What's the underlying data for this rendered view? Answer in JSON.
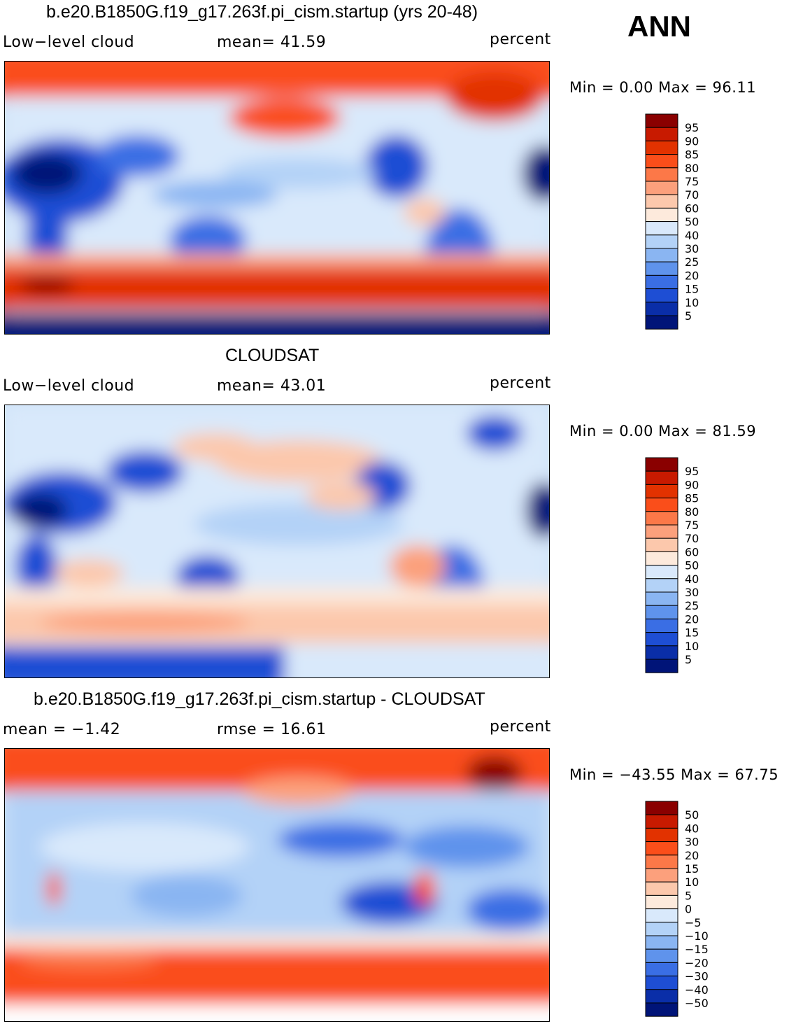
{
  "season": "ANN",
  "panels": [
    {
      "title": "b.e20.B1850G.f19_g17.263f.pi_cism.startup (yrs 20-48)",
      "left_text": "Low−level cloud",
      "center_text": "mean=   41.59",
      "right_text": "percent",
      "minmax_text": "Min =     0.00  Max =    96.11"
    },
    {
      "title": "CLOUDSAT",
      "left_text": "Low−level cloud",
      "center_text": "mean=   43.01",
      "right_text": "percent",
      "minmax_text": "Min =     0.00  Max =    81.59"
    },
    {
      "title": "b.e20.B1850G.f19_g17.263f.pi_cism.startup - CLOUDSAT",
      "left_text": "mean  =   −1.42",
      "center_text": "rmse  =    16.61",
      "right_text": "percent",
      "minmax_text": "Min = −43.55  Max =    67.75"
    }
  ],
  "chart_data": [
    {
      "type": "heatmap",
      "title": "b.e20.B1850G.f19_g17.263f.pi_cism.startup (yrs 20-48)",
      "variable": "Low−level cloud",
      "units": "percent",
      "mean": 41.59,
      "min": 0.0,
      "max": 96.11,
      "colorbar_levels": [
        "95",
        "90",
        "85",
        "80",
        "75",
        "70",
        "60",
        "50",
        "40",
        "30",
        "25",
        "20",
        "15",
        "10",
        "5"
      ],
      "colorbar_colors": [
        "#8a0000",
        "#c81a00",
        "#e23200",
        "#fa4e1a",
        "#fc7848",
        "#fca07c",
        "#fcc8ac",
        "#fdeadc",
        "#d9e9fb",
        "#b3d2f7",
        "#8ab5f2",
        "#5f93ec",
        "#3a6ee4",
        "#1e4ed4",
        "#0a2ea8",
        "#001478"
      ]
    },
    {
      "type": "heatmap",
      "title": "CLOUDSAT",
      "variable": "Low−level cloud",
      "units": "percent",
      "mean": 43.01,
      "min": 0.0,
      "max": 81.59,
      "colorbar_levels": [
        "95",
        "90",
        "85",
        "80",
        "75",
        "70",
        "60",
        "50",
        "40",
        "30",
        "25",
        "20",
        "15",
        "10",
        "5"
      ],
      "colorbar_colors": [
        "#8a0000",
        "#c81a00",
        "#e23200",
        "#fa4e1a",
        "#fc7848",
        "#fca07c",
        "#fcc8ac",
        "#fdeadc",
        "#d9e9fb",
        "#b3d2f7",
        "#8ab5f2",
        "#5f93ec",
        "#3a6ee4",
        "#1e4ed4",
        "#0a2ea8",
        "#001478"
      ]
    },
    {
      "type": "heatmap",
      "title": "b.e20.B1850G.f19_g17.263f.pi_cism.startup - CLOUDSAT",
      "units": "percent",
      "mean": -1.42,
      "rmse": 16.61,
      "min": -43.55,
      "max": 67.75,
      "colorbar_levels": [
        "50",
        "40",
        "30",
        "20",
        "15",
        "10",
        "5",
        "0",
        "−5",
        "−10",
        "−15",
        "−20",
        "−30",
        "−40",
        "−50"
      ],
      "colorbar_colors": [
        "#8a0000",
        "#c81a00",
        "#e23200",
        "#fa4e1a",
        "#fc7848",
        "#fca07c",
        "#fcc8ac",
        "#fdeadc",
        "#d9e9fb",
        "#b3d2f7",
        "#8ab5f2",
        "#5f93ec",
        "#3a6ee4",
        "#1e4ed4",
        "#0a2ea8",
        "#001478"
      ]
    }
  ]
}
